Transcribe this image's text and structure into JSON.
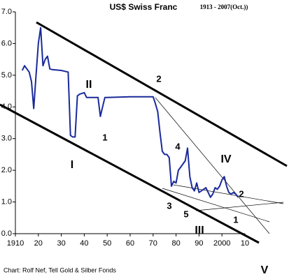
{
  "chart_data": {
    "type": "line",
    "title": "US$ Swiss Franc",
    "subtitle": "1913 - 2007(Oct.))",
    "credit": "Chart: Rolf Nef, Tell Gold & Silber Fonds",
    "annotations": [
      "I",
      "II",
      "III",
      "IV",
      "V",
      "1",
      "2",
      "3",
      "4",
      "5",
      "1",
      "2"
    ],
    "x": [
      1913,
      1914,
      1915,
      1916,
      1917,
      1918,
      1919,
      1920,
      1921,
      1922,
      1923,
      1924,
      1925,
      1926,
      1930,
      1933,
      1934,
      1935,
      1936,
      1937,
      1938,
      1940,
      1941,
      1945,
      1946,
      1947,
      1948,
      1949,
      1950,
      1960,
      1970,
      1971,
      1972,
      1973,
      1974,
      1975,
      1976,
      1977,
      1978,
      1979,
      1980,
      1981,
      1982,
      1984,
      1985,
      1986,
      1987,
      1988,
      1989,
      1990,
      1991,
      1992,
      1993,
      1994,
      1995,
      1996,
      1997,
      1998,
      1999,
      2000,
      2001,
      2002,
      2003,
      2004,
      2005,
      2006,
      2007
    ],
    "series": [
      {
        "name": "US$ Swiss Franc",
        "color": "#1a2a9a",
        "values": [
          5.15,
          5.3,
          5.2,
          5.1,
          4.8,
          3.95,
          5.0,
          6.0,
          6.5,
          5.3,
          5.5,
          5.6,
          5.2,
          5.18,
          5.15,
          5.1,
          3.1,
          3.05,
          3.05,
          4.35,
          4.4,
          4.45,
          4.3,
          4.3,
          4.3,
          3.7,
          4.0,
          4.3,
          4.3,
          4.32,
          4.32,
          4.1,
          3.85,
          3.2,
          2.6,
          2.5,
          2.5,
          2.4,
          1.5,
          1.65,
          1.6,
          2.0,
          2.1,
          2.3,
          2.7,
          1.8,
          1.45,
          1.35,
          1.6,
          1.3,
          1.35,
          1.4,
          1.45,
          1.3,
          1.15,
          1.25,
          1.45,
          1.4,
          1.5,
          1.7,
          1.8,
          1.5,
          1.3,
          1.25,
          1.3,
          1.25,
          1.15
        ]
      }
    ],
    "xlim": [
      1910,
      2010
    ],
    "xticks": [
      1910,
      {
        "value": 1920,
        "label": "20"
      },
      {
        "value": 1930,
        "label": "30"
      },
      {
        "value": 1940,
        "label": "40"
      },
      {
        "value": 1950,
        "label": "50"
      },
      {
        "value": 1960,
        "label": "60"
      },
      {
        "value": 1970,
        "label": "70"
      },
      {
        "value": 1980,
        "label": "80"
      },
      {
        "value": 1990,
        "label": "90"
      },
      2000,
      {
        "value": 2010,
        "label": "10"
      }
    ],
    "ylim": [
      0,
      7
    ],
    "yticks": [
      {
        "value": 0,
        "label": "0.0"
      },
      {
        "value": 1,
        "label": "1.0"
      },
      {
        "value": 2,
        "label": "2.0"
      },
      {
        "value": 3,
        "label": "3.0"
      },
      {
        "value": 4,
        "label": "4.0"
      },
      {
        "value": 5,
        "label": "5.0"
      },
      {
        "value": 6,
        "label": "6.0"
      },
      {
        "value": 7,
        "label": "7.0"
      }
    ]
  }
}
